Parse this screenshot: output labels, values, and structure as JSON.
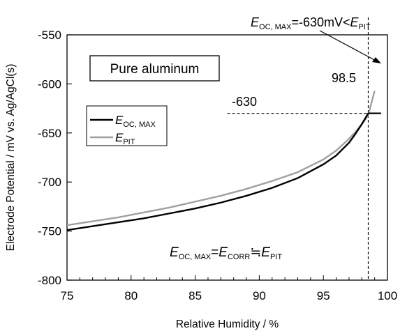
{
  "chart_data": {
    "type": "line",
    "xlabel": "Relative Humidity / %",
    "ylabel": "Electrode Potential / mV vs. Ag/AgCl(s)",
    "xlim": [
      75,
      100
    ],
    "ylim": [
      -800,
      -550
    ],
    "xticks": [
      75,
      80,
      85,
      90,
      95,
      100
    ],
    "yticks": [
      -550,
      -600,
      -650,
      -700,
      -750,
      -800
    ],
    "grid": false,
    "legend_position": "left",
    "series": [
      {
        "key": "eoc",
        "name_main": "E",
        "name_sub": "OC, MAX",
        "color": "#000000",
        "x": [
          75,
          77,
          79,
          81,
          83,
          85,
          87,
          89,
          91,
          93,
          95,
          96,
          97,
          97.5,
          98,
          98.5
        ],
        "y": [
          -749,
          -745,
          -741,
          -737,
          -732,
          -727,
          -721,
          -714,
          -706,
          -696,
          -682,
          -673,
          -660,
          -651,
          -641,
          -630
        ]
      },
      {
        "key": "epit",
        "name_main": "E",
        "name_sub": "PIT",
        "color": "#a0a0a0",
        "x": [
          75,
          77,
          79,
          81,
          83,
          85,
          87,
          89,
          91,
          93,
          95,
          96,
          97,
          97.5,
          98,
          98.5,
          99
        ],
        "y": [
          -744,
          -740,
          -736,
          -731,
          -726,
          -720,
          -714,
          -707,
          -699,
          -690,
          -677,
          -668,
          -656,
          -649,
          -641,
          -632,
          -607
        ]
      }
    ],
    "annotations": {
      "box_label": "Pure aluminum",
      "value_label": "-630",
      "rh_label": "98.5",
      "ref_x": 98.5,
      "ref_y": -630,
      "top_note": {
        "e1": "E",
        "s1": "OC, MAX",
        "mid": "=-630mV<",
        "e2": "E",
        "s2": "PIT"
      },
      "relation": {
        "e1": "E",
        "s1": "OC, MAX",
        "eq": "=",
        "e2": "E",
        "s2": "CORR",
        "approx": "≒",
        "e3": "E",
        "s3": "PIT"
      }
    }
  }
}
